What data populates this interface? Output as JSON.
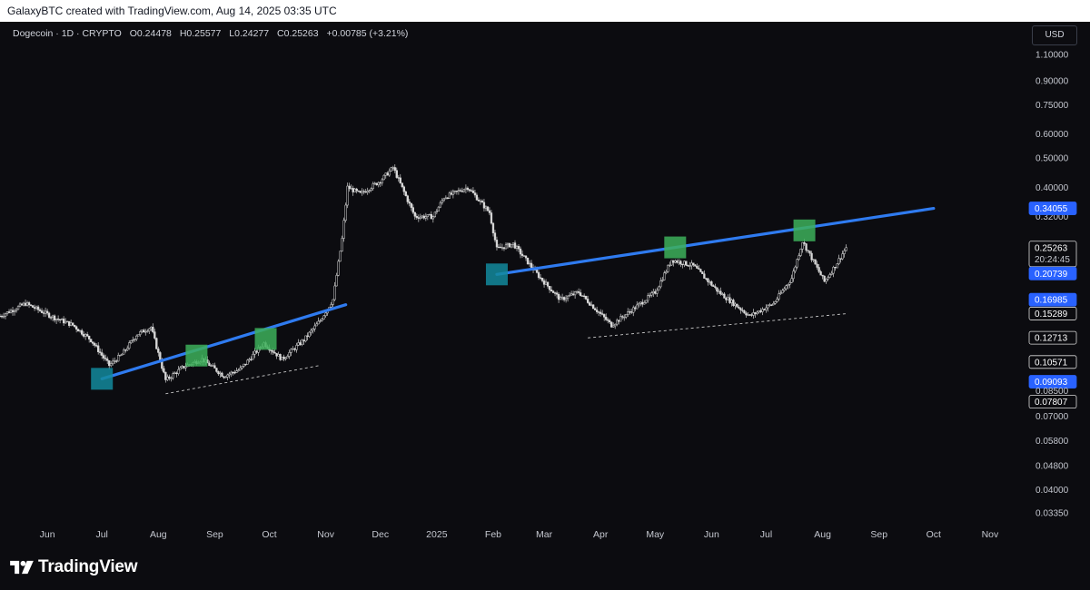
{
  "header": {
    "text": "GalaxyBTC created with TradingView.com, Aug 14, 2025 03:35 UTC"
  },
  "legend": {
    "symbol": "Dogecoin · 1D · CRYPTO",
    "open_label": "O",
    "open": "0.24478",
    "high_label": "H",
    "high": "0.25577",
    "low_label": "L",
    "low": "0.24277",
    "close_label": "C",
    "close": "0.25263",
    "change": "+0.00785 (+3.21%)"
  },
  "currency": "USD",
  "footer": {
    "brand": "TradingView",
    "logo_icon": "tradingview-logo-icon"
  },
  "colors": {
    "background": "#0c0c10",
    "candle": "#d9d9d9",
    "trendline": "#2f7bf0",
    "teal_marker": "#138a9c",
    "green_marker": "#3db05a",
    "badge_blue": "#2962ff"
  },
  "chart_data": {
    "type": "candlestick",
    "y_scale": "log",
    "x_range": [
      "2024-05-06",
      "2025-11-20"
    ],
    "x_ticks": [
      {
        "label": "Jun",
        "date": "2024-06-01"
      },
      {
        "label": "Jul",
        "date": "2024-07-01"
      },
      {
        "label": "Aug",
        "date": "2024-08-01"
      },
      {
        "label": "Sep",
        "date": "2024-09-01"
      },
      {
        "label": "Oct",
        "date": "2024-10-01"
      },
      {
        "label": "Nov",
        "date": "2024-11-01"
      },
      {
        "label": "Dec",
        "date": "2024-12-01"
      },
      {
        "label": "2025",
        "date": "2025-01-01"
      },
      {
        "label": "Feb",
        "date": "2025-02-01"
      },
      {
        "label": "Mar",
        "date": "2025-03-01"
      },
      {
        "label": "Apr",
        "date": "2025-04-01"
      },
      {
        "label": "May",
        "date": "2025-05-01"
      },
      {
        "label": "Jun",
        "date": "2025-06-01"
      },
      {
        "label": "Jul",
        "date": "2025-07-01"
      },
      {
        "label": "Aug",
        "date": "2025-08-01"
      },
      {
        "label": "Sep",
        "date": "2025-09-01"
      },
      {
        "label": "Oct",
        "date": "2025-10-01"
      },
      {
        "label": "Nov",
        "date": "2025-11-01"
      }
    ],
    "y_ticks": [
      "1.10000",
      "0.90000",
      "0.75000",
      "0.60000",
      "0.50000",
      "0.40000",
      "0.32000",
      "0.07000",
      "0.05800",
      "0.04800",
      "0.04000",
      "0.03350"
    ],
    "price_labels": [
      {
        "value": "0.34055",
        "style": "blue"
      },
      {
        "value": "0.25263",
        "style": "white",
        "sub": "20:24:45"
      },
      {
        "value": "0.20739",
        "style": "blue"
      },
      {
        "value": "0.16985",
        "style": "blue"
      },
      {
        "value": "0.15289",
        "style": "white"
      },
      {
        "value": "0.12713",
        "style": "white"
      },
      {
        "value": "0.10571",
        "style": "white"
      },
      {
        "value": "0.09093",
        "style": "blue"
      },
      {
        "value": "0.08500",
        "style": "plain"
      },
      {
        "value": "0.07807",
        "style": "white"
      }
    ],
    "price_path": [
      [
        "2024-05-06",
        0.15
      ],
      [
        "2024-05-20",
        0.165
      ],
      [
        "2024-06-05",
        0.148
      ],
      [
        "2024-06-15",
        0.14
      ],
      [
        "2024-06-25",
        0.125
      ],
      [
        "2024-07-05",
        0.103
      ],
      [
        "2024-07-12",
        0.112
      ],
      [
        "2024-07-20",
        0.13
      ],
      [
        "2024-07-28",
        0.138
      ],
      [
        "2024-08-05",
        0.092
      ],
      [
        "2024-08-15",
        0.102
      ],
      [
        "2024-08-25",
        0.108
      ],
      [
        "2024-09-06",
        0.095
      ],
      [
        "2024-09-15",
        0.1
      ],
      [
        "2024-09-28",
        0.122
      ],
      [
        "2024-10-08",
        0.108
      ],
      [
        "2024-10-20",
        0.125
      ],
      [
        "2024-10-29",
        0.145
      ],
      [
        "2024-11-05",
        0.17
      ],
      [
        "2024-11-10",
        0.27
      ],
      [
        "2024-11-13",
        0.4
      ],
      [
        "2024-11-20",
        0.38
      ],
      [
        "2024-12-01",
        0.42
      ],
      [
        "2024-12-08",
        0.465
      ],
      [
        "2024-12-20",
        0.32
      ],
      [
        "2024-12-30",
        0.32
      ],
      [
        "2025-01-05",
        0.37
      ],
      [
        "2025-01-18",
        0.4
      ],
      [
        "2025-01-30",
        0.33
      ],
      [
        "2025-02-03",
        0.25
      ],
      [
        "2025-02-12",
        0.26
      ],
      [
        "2025-02-27",
        0.2
      ],
      [
        "2025-03-10",
        0.17
      ],
      [
        "2025-03-20",
        0.18
      ],
      [
        "2025-04-07",
        0.14
      ],
      [
        "2025-04-20",
        0.16
      ],
      [
        "2025-05-01",
        0.18
      ],
      [
        "2025-05-10",
        0.23
      ],
      [
        "2025-05-22",
        0.22
      ],
      [
        "2025-06-05",
        0.18
      ],
      [
        "2025-06-22",
        0.15
      ],
      [
        "2025-07-05",
        0.165
      ],
      [
        "2025-07-15",
        0.2
      ],
      [
        "2025-07-21",
        0.265
      ],
      [
        "2025-08-02",
        0.195
      ],
      [
        "2025-08-08",
        0.22
      ],
      [
        "2025-08-14",
        0.25263
      ]
    ],
    "trendlines": [
      {
        "name": "support-trend-1",
        "style": "solid-blue",
        "start": [
          "2024-07-01",
          0.093
        ],
        "end": [
          "2024-11-12",
          0.1635
        ]
      },
      {
        "name": "support-trend-1-dashed",
        "style": "dashed",
        "start": [
          "2024-08-05",
          0.083
        ],
        "end": [
          "2024-10-29",
          0.103
        ]
      },
      {
        "name": "resistance-trend-2",
        "style": "solid-blue",
        "start": [
          "2025-02-03",
          0.206
        ],
        "end": [
          "2025-10-01",
          0.3406
        ]
      },
      {
        "name": "support-trend-2-dashed",
        "style": "dashed",
        "start": [
          "2025-03-25",
          0.127
        ],
        "end": [
          "2025-08-15",
          0.1529
        ]
      }
    ],
    "markers": [
      {
        "date": "2024-07-01",
        "value": 0.093,
        "color": "teal"
      },
      {
        "date": "2024-08-22",
        "value": 0.111,
        "color": "green"
      },
      {
        "date": "2024-09-29",
        "value": 0.126,
        "color": "green"
      },
      {
        "date": "2025-02-03",
        "value": 0.206,
        "color": "teal"
      },
      {
        "date": "2025-05-12",
        "value": 0.253,
        "color": "green"
      },
      {
        "date": "2025-07-22",
        "value": 0.288,
        "color": "green"
      }
    ]
  }
}
